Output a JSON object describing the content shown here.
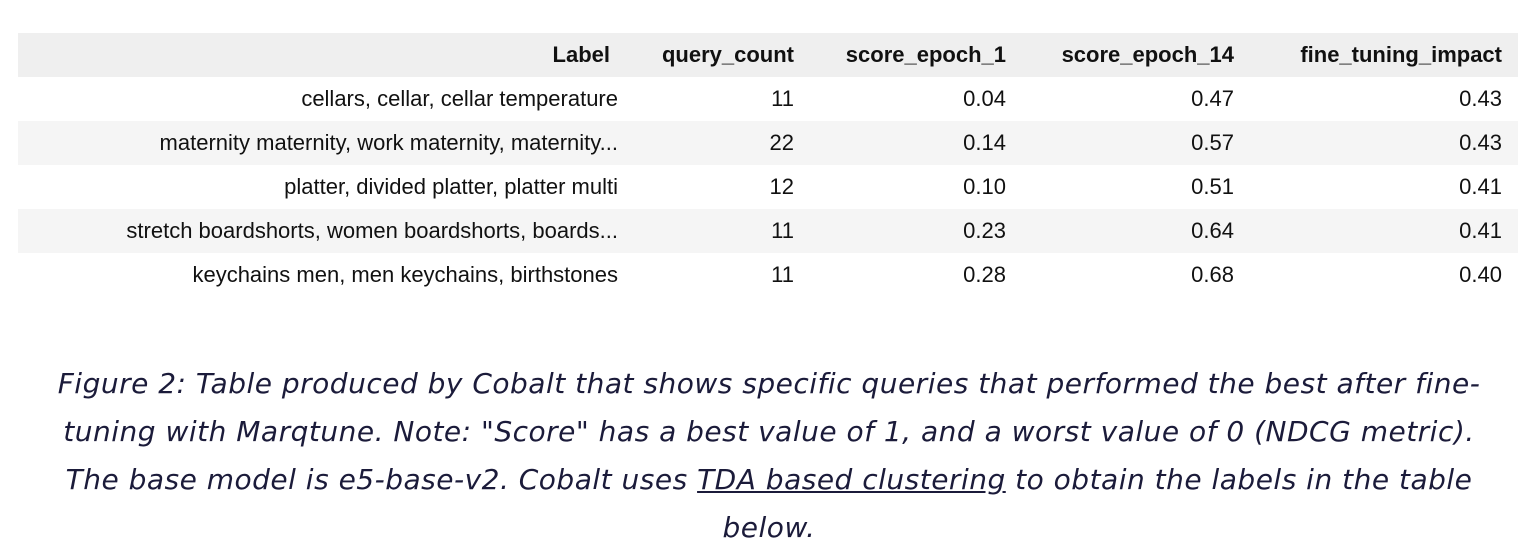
{
  "table": {
    "headers": [
      "Label",
      "query_count",
      "score_epoch_1",
      "score_epoch_14",
      "fine_tuning_impact"
    ],
    "rows": [
      [
        "cellars, cellar, cellar temperature",
        "11",
        "0.04",
        "0.47",
        "0.43"
      ],
      [
        "maternity maternity, work maternity, maternity...",
        "22",
        "0.14",
        "0.57",
        "0.43"
      ],
      [
        "platter, divided platter, platter multi",
        "12",
        "0.10",
        "0.51",
        "0.41"
      ],
      [
        "stretch boardshorts, women boardshorts, boards...",
        "11",
        "0.23",
        "0.64",
        "0.41"
      ],
      [
        "keychains men, men keychains, birthstones",
        "11",
        "0.28",
        "0.68",
        "0.40"
      ]
    ]
  },
  "caption": {
    "before_link": "Figure 2: Table produced by Cobalt that shows specific queries that performed the best after fine-tuning with Marqtune. Note: \"Score\" has a best value of 1, and a worst value of 0 (NDCG metric). The base model is e5-base-v2. Cobalt uses ",
    "link_text": "TDA based clustering",
    "after_link": " to obtain the labels in the table below."
  },
  "colors": {
    "header_bg": "#efefef",
    "stripe_bg": "#f5f5f5",
    "caption_text": "#1b1b3a"
  }
}
